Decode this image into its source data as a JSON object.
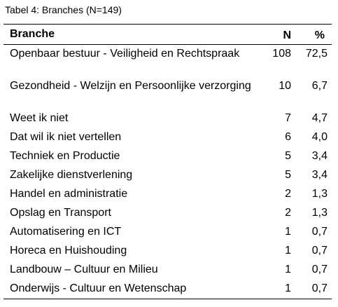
{
  "caption": "Tabel 4: Branches (N=149)",
  "header": {
    "branche": "Branche",
    "n": "N",
    "pct": "%"
  },
  "rows": [
    {
      "branche": "Openbaar bestuur - Veiligheid en Rechtspraak",
      "n": "108",
      "pct": "72,5"
    },
    {
      "branche": "Gezondheid - Welzijn en Persoonlijke verzorging",
      "n": "10",
      "pct": "6,7"
    },
    {
      "branche": "Weet ik niet",
      "n": "7",
      "pct": "4,7"
    },
    {
      "branche": "Dat wil ik niet vertellen",
      "n": "6",
      "pct": "4,0"
    },
    {
      "branche": "Techniek en Productie",
      "n": "5",
      "pct": "3,4"
    },
    {
      "branche": "Zakelijke dienstverlening",
      "n": "5",
      "pct": "3,4"
    },
    {
      "branche": "Handel en administratie",
      "n": "2",
      "pct": "1,3"
    },
    {
      "branche": "Opslag en Transport",
      "n": "2",
      "pct": "1,3"
    },
    {
      "branche": "Automatisering en ICT",
      "n": "1",
      "pct": "0,7"
    },
    {
      "branche": "Horeca en Huishouding",
      "n": "1",
      "pct": "0,7"
    },
    {
      "branche": "Landbouw – Cultuur en Milieu",
      "n": "1",
      "pct": "0,7"
    },
    {
      "branche": "Onderwijs - Cultuur en Wetenschap",
      "n": "1",
      "pct": "0,7"
    }
  ]
}
